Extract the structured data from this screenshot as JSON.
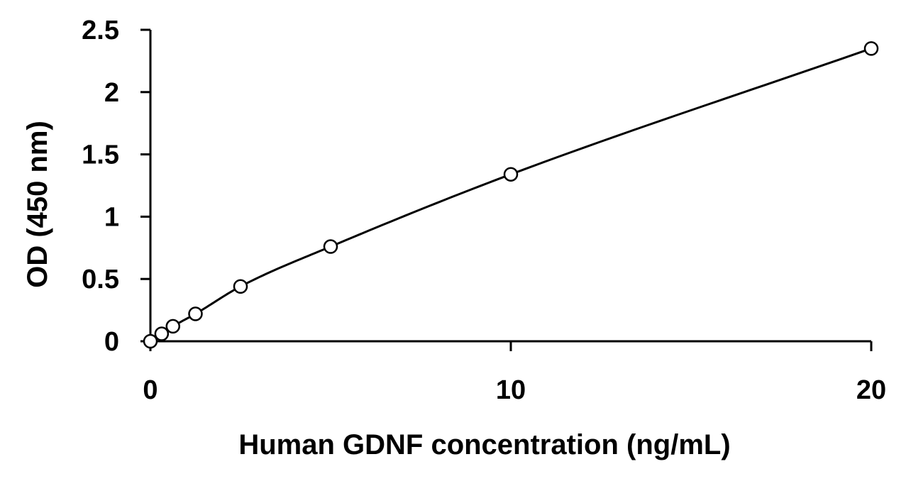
{
  "chart_data": {
    "type": "scatter",
    "title": "",
    "xlabel": "Human GDNF concentration (ng/mL)",
    "ylabel": "OD (450 nm)",
    "xlim": [
      0,
      20
    ],
    "ylim": [
      0,
      2.5
    ],
    "xticks": [
      0,
      10,
      20
    ],
    "xtick_labels": [
      "0",
      "10",
      "20"
    ],
    "yticks": [
      0,
      0.5,
      1,
      1.5,
      2,
      2.5
    ],
    "ytick_labels": [
      "0",
      "0.5",
      "1",
      "1.5",
      "2",
      "2.5"
    ],
    "grid": false,
    "legend": "none",
    "marker": "open-circle",
    "fit_line": "smooth-curve",
    "series": [
      {
        "x": [
          0,
          0.3125,
          0.625,
          1.25,
          2.5,
          5,
          10,
          20
        ],
        "y": [
          0,
          0.06,
          0.12,
          0.22,
          0.44,
          0.76,
          1.34,
          2.35
        ]
      }
    ],
    "colors": {
      "line": "#000000",
      "marker_fill": "#ffffff",
      "marker_stroke": "#000000"
    }
  }
}
